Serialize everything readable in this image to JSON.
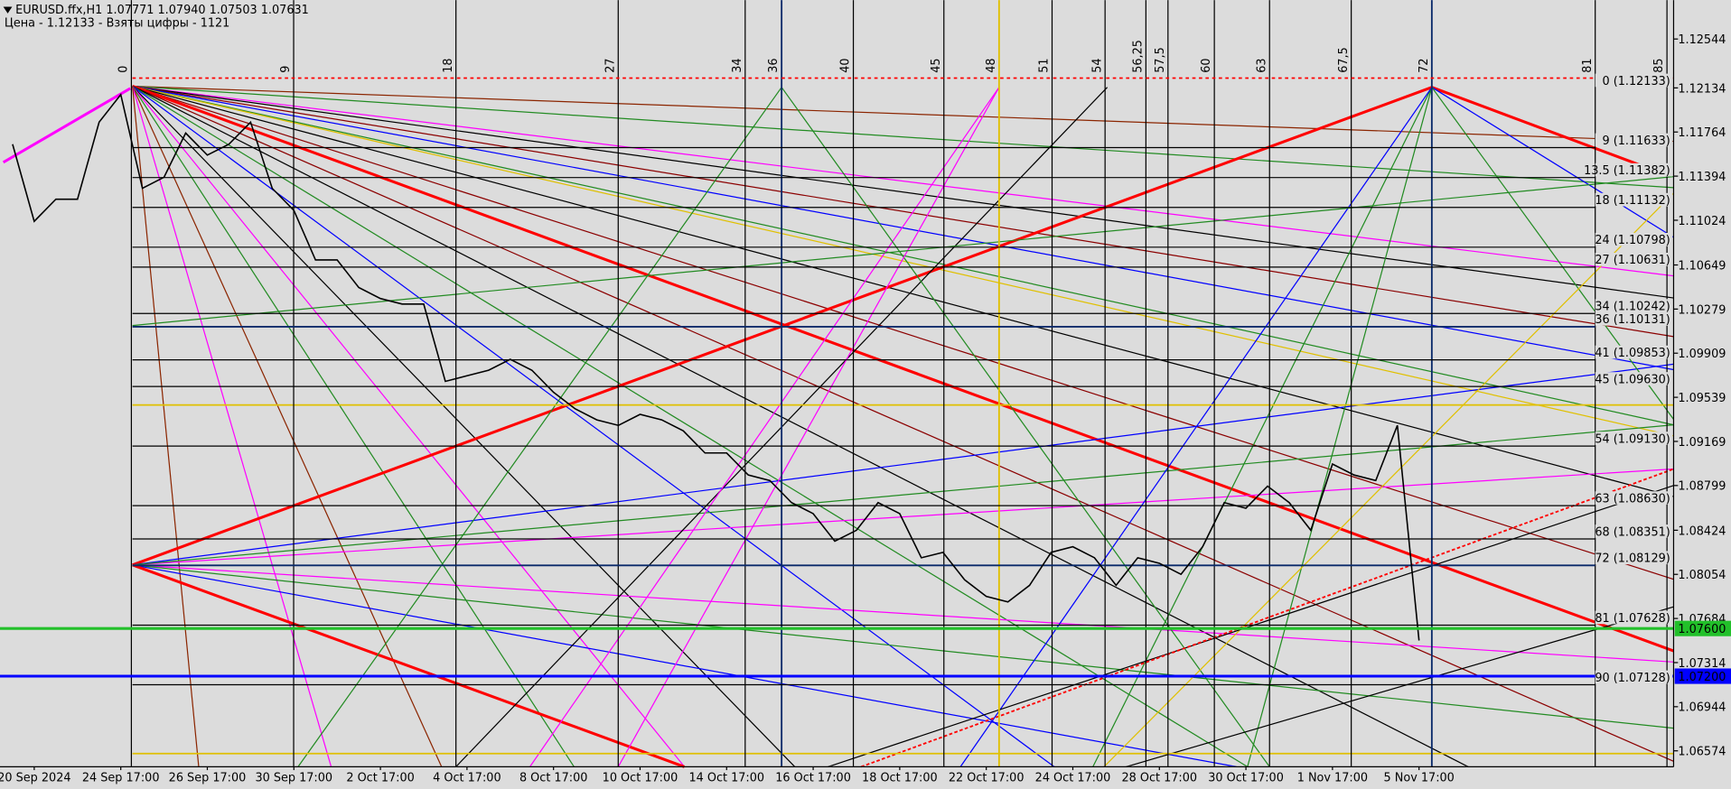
{
  "chart_data": {
    "type": "line",
    "title": "EURUSD.ffx,H1  1.07771 1.07940 1.07503 1.07631",
    "subtitle": "Цена - 1.12133 - Взяты цифры - 1121",
    "categories": [
      null,
      "20 Sep 2024",
      null,
      null,
      null,
      "24 Sep 17:00",
      null,
      null,
      null,
      "26 Sep 17:00",
      null,
      null,
      null,
      "30 Sep 17:00",
      null,
      null,
      null,
      "2 Oct 17:00",
      null,
      null,
      null,
      "4 Oct 17:00",
      null,
      null,
      null,
      "8 Oct 17:00",
      null,
      null,
      null,
      "10 Oct 17:00",
      null,
      null,
      null,
      "14 Oct 17:00",
      null,
      null,
      null,
      "16 Oct 17:00",
      null,
      null,
      null,
      "18 Oct 17:00",
      null,
      null,
      null,
      "22 Oct 17:00",
      null,
      null,
      null,
      "24 Oct 17:00",
      null,
      null,
      null,
      "28 Oct 17:00",
      null,
      null,
      null,
      "30 Oct 17:00",
      null,
      null,
      null,
      "1 Nov 17:00",
      null,
      null,
      null,
      "5 Nov 17:00"
    ],
    "values": [
      1.11662,
      1.11015,
      1.112,
      1.112,
      1.11847,
      1.12078,
      1.11292,
      1.11385,
      1.11755,
      1.1157,
      1.11662,
      1.11847,
      1.11292,
      1.11107,
      1.10691,
      1.10691,
      1.1046,
      1.10367,
      1.10321,
      1.10321,
      1.09673,
      1.0972,
      1.09766,
      1.09858,
      1.09766,
      1.09581,
      1.09442,
      1.0935,
      1.09303,
      1.09396,
      1.0935,
      1.09257,
      1.09072,
      1.09072,
      1.08887,
      1.08841,
      1.08656,
      1.08563,
      1.08332,
      1.08424,
      1.08656,
      1.08563,
      1.08193,
      1.08239,
      1.08008,
      1.07869,
      1.07823,
      1.07962,
      1.08239,
      1.08286,
      1.08193,
      1.07962,
      1.08193,
      1.08147,
      1.08054,
      1.08286,
      1.08656,
      1.08609,
      1.08794,
      1.08656,
      1.08424,
      1.0898,
      1.08887,
      1.08841,
      1.09303,
      1.07499
    ],
    "color": "#000000",
    "ylim": [
      1.0644,
      1.1287
    ],
    "yticks": [
      1.12544,
      1.12134,
      1.11764,
      1.11394,
      1.11024,
      1.10649,
      1.10279,
      1.09909,
      1.09539,
      1.09169,
      1.08799,
      1.08424,
      1.08054,
      1.07684,
      1.07314,
      1.06944,
      1.06574
    ],
    "levels": [
      {
        "value": 1.12133,
        "label": "0 (1.12133)",
        "color": "#ff0000"
      },
      {
        "value": 1.11633,
        "label": "9 (1.11633)",
        "color": "#000000"
      },
      {
        "value": 1.11382,
        "label": "13.5 (1.11382)",
        "color": "#000000"
      },
      {
        "value": 1.11132,
        "label": "18 (1.11132)",
        "color": "#000000"
      },
      {
        "value": 1.10798,
        "label": "24 (1.10798)",
        "color": "#000000"
      },
      {
        "value": 1.10631,
        "label": "27 (1.10631)",
        "color": "#000000"
      },
      {
        "value": 1.10242,
        "label": "34 (1.10242)",
        "color": "#000000"
      },
      {
        "value": 1.10131,
        "label": "36 (1.10131)",
        "color": "#0a2a6a"
      },
      {
        "value": 1.09853,
        "label": "41 (1.09853)",
        "color": "#000000"
      },
      {
        "value": 1.0963,
        "label": "45 (1.09630)",
        "color": "#000000"
      },
      {
        "value": 1.0913,
        "label": "54 (1.09130)",
        "color": "#000000"
      },
      {
        "value": 1.0863,
        "label": "63 (1.08630)",
        "color": "#000000"
      },
      {
        "value": 1.08351,
        "label": "68 (1.08351)",
        "color": "#000000"
      },
      {
        "value": 1.08129,
        "label": "72 (1.08129)",
        "color": "#0a2a6a"
      },
      {
        "value": 1.07628,
        "label": "81 (1.07628)",
        "color": "#000000"
      },
      {
        "value": 1.07128,
        "label": "90 (1.07128)",
        "color": "#000000"
      }
    ],
    "price_lines": [
      {
        "value": 1.076,
        "label": "1.07600",
        "color": "#22c02a"
      },
      {
        "value": 1.072,
        "label": "1.07200",
        "color": "#0000ff"
      }
    ],
    "time_levels": [
      "0",
      "9",
      "18",
      "27",
      "34",
      "36",
      "40",
      "45",
      "48",
      "51",
      "54",
      "56,25",
      "57,5",
      "60",
      "63",
      "67,5",
      "72",
      "81",
      "85"
    ]
  }
}
